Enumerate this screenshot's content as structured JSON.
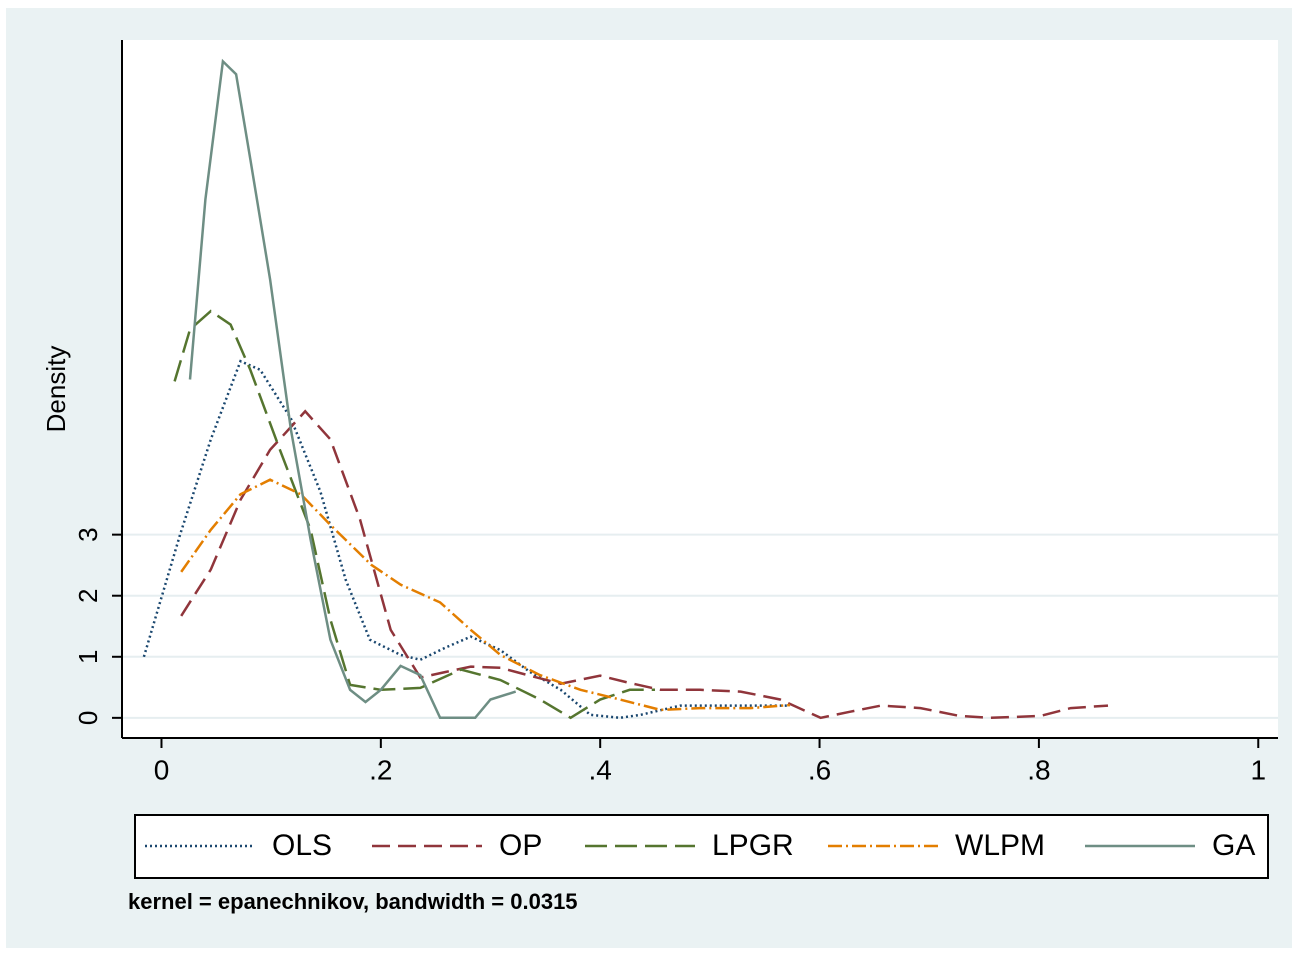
{
  "chart_data": {
    "type": "line",
    "y_label": "Density",
    "note": "kernel = epanechnikov, bandwidth = 0.0315",
    "xlim": [
      -0.036,
      1.018
    ],
    "ylim": [
      -0.33,
      11.1
    ],
    "xticks": [
      0,
      {
        "value": 0.2,
        "label": ".2"
      },
      {
        "value": 0.4,
        "label": ".4"
      },
      {
        "value": 0.6,
        "label": ".6"
      },
      {
        "value": 0.8,
        "label": ".8"
      },
      1
    ],
    "yticks": [
      0,
      1,
      2,
      3
    ],
    "grid": true,
    "legend": "bottom",
    "series": [
      {
        "name": "OLS",
        "color": "#1a476f",
        "dash": "2,3",
        "x": [
          -0.016,
          0.017,
          0.045,
          0.072,
          0.09,
          0.118,
          0.145,
          0.168,
          0.19,
          0.218,
          0.236,
          0.259,
          0.282,
          0.309,
          0.336,
          0.364,
          0.391,
          0.418,
          0.437,
          0.473,
          0.519,
          0.555,
          0.573
        ],
        "values": [
          1.0,
          3.0,
          4.56,
          5.84,
          5.7,
          4.9,
          3.7,
          2.26,
          1.28,
          1.03,
          0.95,
          1.15,
          1.33,
          1.11,
          0.75,
          0.46,
          0.05,
          0,
          0.05,
          0.2,
          0.2,
          0.2,
          0.2
        ]
      },
      {
        "name": "OP",
        "color": "#90353b",
        "dash": "18,8",
        "x": [
          0.018,
          0.045,
          0.072,
          0.099,
          0.131,
          0.154,
          0.181,
          0.209,
          0.236,
          0.259,
          0.282,
          0.309,
          0.336,
          0.364,
          0.4,
          0.427,
          0.455,
          0.491,
          0.528,
          0.564,
          0.601,
          0.628,
          0.656,
          0.692,
          0.728,
          0.756,
          0.801,
          0.829,
          0.863
        ],
        "values": [
          1.67,
          2.43,
          3.57,
          4.39,
          5.02,
          4.56,
          3.25,
          1.44,
          0.66,
          0.75,
          0.84,
          0.82,
          0.69,
          0.56,
          0.69,
          0.57,
          0.46,
          0.46,
          0.43,
          0.3,
          0,
          0.1,
          0.2,
          0.16,
          0.03,
          0,
          0.03,
          0.16,
          0.2
        ]
      },
      {
        "name": "LPGR",
        "color": "#55752f",
        "dash": "22,8",
        "x": [
          0.012,
          0.026,
          0.045,
          0.063,
          0.081,
          0.108,
          0.136,
          0.154,
          0.172,
          0.2,
          0.236,
          0.273,
          0.309,
          0.345,
          0.373,
          0.4,
          0.427,
          0.45
        ],
        "values": [
          5.51,
          6.36,
          6.66,
          6.44,
          5.7,
          4.39,
          3.08,
          1.61,
          0.54,
          0.46,
          0.49,
          0.79,
          0.62,
          0.3,
          0,
          0.3,
          0.46,
          0.46
        ]
      },
      {
        "name": "WLPM",
        "color": "#e37e00",
        "dash": "14,4,2,4",
        "x": [
          0.018,
          0.045,
          0.072,
          0.099,
          0.127,
          0.154,
          0.191,
          0.218,
          0.254,
          0.282,
          0.309,
          0.345,
          0.382,
          0.418,
          0.455,
          0.491,
          0.537,
          0.573
        ],
        "values": [
          2.39,
          3.08,
          3.66,
          3.9,
          3.66,
          3.16,
          2.51,
          2.18,
          1.89,
          1.44,
          1.03,
          0.7,
          0.46,
          0.3,
          0.13,
          0.16,
          0.16,
          0.21
        ]
      },
      {
        "name": "GA",
        "color": "#6e8e84",
        "dash": "",
        "x": [
          0.026,
          0.04,
          0.056,
          0.068,
          0.081,
          0.099,
          0.118,
          0.136,
          0.154,
          0.172,
          0.186,
          0.2,
          0.218,
          0.236,
          0.254,
          0.286,
          0.3,
          0.323
        ],
        "values": [
          5.54,
          8.49,
          10.75,
          10.54,
          9.15,
          7.18,
          4.72,
          2.92,
          1.28,
          0.46,
          0.26,
          0.46,
          0.85,
          0.7,
          0,
          0,
          0.3,
          0.43
        ]
      }
    ]
  }
}
